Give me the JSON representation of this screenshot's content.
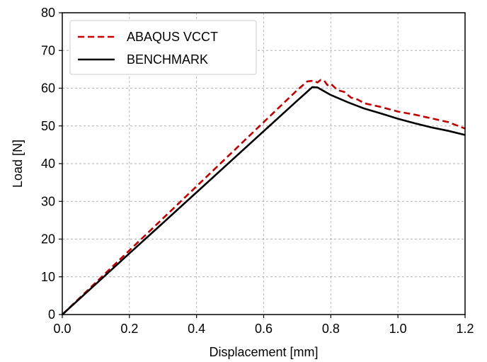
{
  "chart_data": {
    "type": "line",
    "xlabel": "Displacement [mm]",
    "ylabel": "Load [N]",
    "xlim": [
      0,
      1.2
    ],
    "ylim": [
      0,
      80
    ],
    "xticks": [
      "0.0",
      "0.2",
      "0.4",
      "0.6",
      "0.8",
      "1.0",
      "1.2"
    ],
    "yticks": [
      "0",
      "10",
      "20",
      "30",
      "40",
      "50",
      "60",
      "70",
      "80"
    ],
    "grid": true,
    "legend_position": "top-left",
    "series": [
      {
        "name": "ABAQUS VCCT",
        "color": "#c00000",
        "style": "dashed",
        "x": [
          0.0,
          0.1,
          0.2,
          0.3,
          0.4,
          0.5,
          0.6,
          0.7,
          0.73,
          0.75,
          0.76,
          0.77,
          0.78,
          0.79,
          0.8,
          0.82,
          0.84,
          0.86,
          0.88,
          0.9,
          0.95,
          1.0,
          1.05,
          1.1,
          1.15,
          1.2
        ],
        "y": [
          0.0,
          8.5,
          17.0,
          25.5,
          34.0,
          42.5,
          51.0,
          59.5,
          61.8,
          62.0,
          61.5,
          62.2,
          62.0,
          60.8,
          61.2,
          59.5,
          59.0,
          57.5,
          57.0,
          56.0,
          55.0,
          53.8,
          53.0,
          52.0,
          51.0,
          49.3
        ]
      },
      {
        "name": "BENCHMARK",
        "color": "#000000",
        "style": "solid",
        "x": [
          0.0,
          0.1,
          0.2,
          0.3,
          0.4,
          0.5,
          0.6,
          0.7,
          0.745,
          0.76,
          0.8,
          0.85,
          0.9,
          0.95,
          1.0,
          1.05,
          1.1,
          1.15,
          1.2
        ],
        "y": [
          0.0,
          8.1,
          16.2,
          24.3,
          32.4,
          40.5,
          48.6,
          56.7,
          60.3,
          60.2,
          58.2,
          56.3,
          54.6,
          53.3,
          51.9,
          50.7,
          49.6,
          48.7,
          47.6
        ]
      }
    ]
  }
}
